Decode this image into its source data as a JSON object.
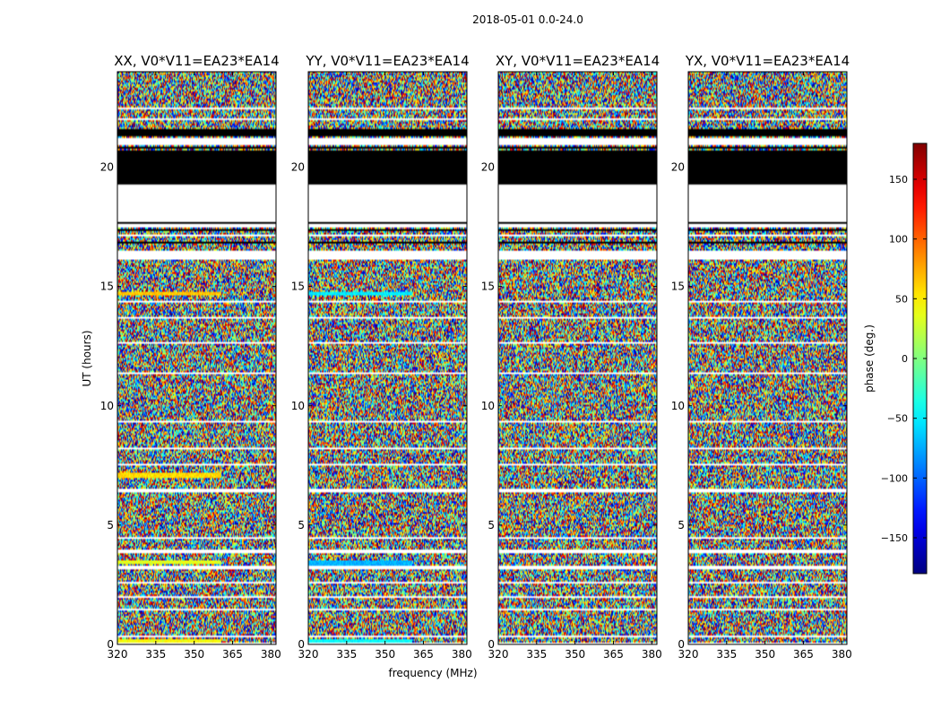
{
  "figure_title": "2018-05-01 0.0-24.0",
  "chart_data": {
    "type": "heatmap",
    "title": "2018-05-01 0.0-24.0",
    "panels": [
      {
        "title": "XX, V0*V11=EA23*EA14",
        "band_bias": "xx"
      },
      {
        "title": "YY, V0*V11=EA23*EA14",
        "band_bias": "yy"
      },
      {
        "title": "XY, V0*V11=EA23*EA14",
        "band_bias": "none"
      },
      {
        "title": "YX, V0*V11=EA23*EA14",
        "band_bias": "none"
      }
    ],
    "xlabel": "frequency (MHz)",
    "ylabel": "UT (hours)",
    "xlim": [
      320,
      382
    ],
    "ylim": [
      0,
      24
    ],
    "xticks": [
      320,
      335,
      350,
      365,
      380
    ],
    "yticks": [
      0,
      5,
      10,
      15,
      20
    ],
    "colorbar": {
      "label": "phase (deg.)",
      "colormap": "jet",
      "range": [
        -180,
        180
      ],
      "ticks": [
        -150,
        -100,
        -50,
        0,
        50,
        100,
        150
      ],
      "tick_labels": [
        "−150",
        "−100",
        "−50",
        "0",
        "50",
        "100",
        "150"
      ]
    },
    "flagged_ut_hours": [
      [
        0.0,
        0.1
      ],
      [
        0.28,
        0.38
      ],
      [
        1.4,
        1.5
      ],
      [
        1.98,
        2.05
      ],
      [
        2.55,
        2.62
      ],
      [
        3.18,
        3.3
      ],
      [
        3.85,
        3.95
      ],
      [
        4.4,
        4.5
      ],
      [
        6.4,
        6.55
      ],
      [
        7.5,
        7.6
      ],
      [
        8.15,
        8.22
      ],
      [
        9.3,
        9.4
      ],
      [
        11.3,
        11.38
      ],
      [
        12.6,
        12.7
      ],
      [
        13.65,
        13.75
      ],
      [
        14.35,
        14.4
      ],
      [
        16.1,
        16.5
      ],
      [
        17.1,
        17.2
      ],
      [
        18.0,
        19.3
      ],
      [
        20.9,
        21.2
      ],
      [
        22.0,
        22.05
      ],
      [
        22.45,
        22.5
      ],
      [
        23.0,
        23.05
      ]
    ],
    "masked_ut_hours": [
      [
        16.8,
        16.9
      ],
      [
        17.3,
        17.38
      ],
      [
        17.45,
        17.5
      ],
      [
        17.6,
        17.65
      ],
      [
        17.75,
        17.8
      ],
      [
        19.35,
        20.7
      ],
      [
        20.8,
        20.86
      ],
      [
        21.3,
        21.6
      ],
      [
        21.65,
        21.7
      ],
      [
        23.15,
        23.2
      ]
    ],
    "grid": false
  }
}
